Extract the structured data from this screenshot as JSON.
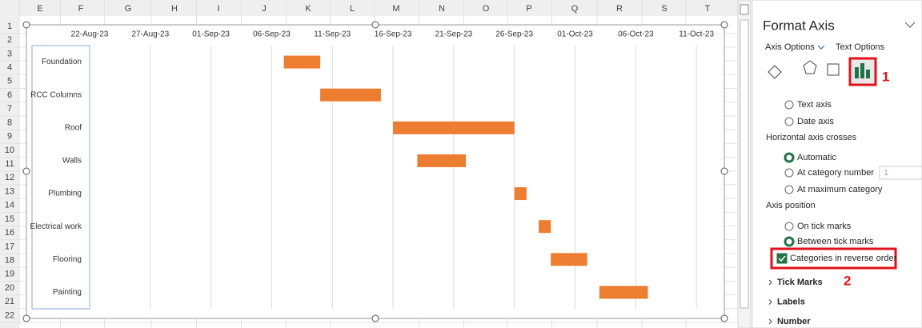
{
  "sheet": {
    "columns": [
      "E",
      "F",
      "G",
      "H",
      "I",
      "J",
      "K",
      "L",
      "M",
      "N",
      "O",
      "P",
      "Q",
      "R",
      "S",
      "T"
    ],
    "rows": [
      "1",
      "2",
      "3",
      "4",
      "5",
      "6",
      "7",
      "8",
      "9",
      "10",
      "11",
      "12",
      "13",
      "14",
      "15",
      "16",
      "17",
      "18",
      "19",
      "20",
      "21",
      "22"
    ]
  },
  "chart_data": {
    "type": "gantt",
    "categories": [
      "Foundation",
      "RCC Columns",
      "Roof",
      "Walls",
      "Plumbing",
      "Electrical work",
      "Flooring",
      "Painting"
    ],
    "start": [
      45176,
      45179,
      45185,
      45187,
      45195,
      45197,
      45198,
      45202
    ],
    "duration": [
      3,
      5,
      10,
      4,
      1,
      1,
      3,
      4
    ],
    "color": "#ed7d31",
    "xlim": [
      45160,
      45212
    ],
    "xticks": [
      {
        "value": 45160,
        "label": "22-Aug-23"
      },
      {
        "value": 45165,
        "label": "27-Aug-23"
      },
      {
        "value": 45170,
        "label": "01-Sep-23"
      },
      {
        "value": 45175,
        "label": "06-Sep-23"
      },
      {
        "value": 45180,
        "label": "11-Sep-23"
      },
      {
        "value": 45185,
        "label": "16-Sep-23"
      },
      {
        "value": 45190,
        "label": "21-Sep-23"
      },
      {
        "value": 45195,
        "label": "26-Sep-23"
      },
      {
        "value": 45200,
        "label": "01-Oct-23"
      },
      {
        "value": 45205,
        "label": "06-Oct-23"
      },
      {
        "value": 45210,
        "label": "11-Oct-23"
      }
    ],
    "grid": true
  },
  "pane": {
    "title": "Format Axis",
    "tabs": [
      "Axis Options",
      "Text Options"
    ],
    "callouts": [
      "1",
      "2"
    ],
    "items": [
      {
        "label": "Text axis",
        "kind": "radio"
      },
      {
        "label": "Date axis",
        "kind": "radio"
      },
      {
        "label": "Horizontal axis crosses",
        "kind": "heading"
      },
      {
        "label": "Automatic",
        "kind": "radio",
        "checked": true
      },
      {
        "label": "At category number",
        "kind": "radio",
        "input": "1"
      },
      {
        "label": "At maximum category",
        "kind": "radio"
      },
      {
        "label": "Axis position",
        "kind": "heading"
      },
      {
        "label": "On tick marks",
        "kind": "radio"
      },
      {
        "label": "Between tick marks",
        "kind": "radio",
        "checked": true
      },
      {
        "label": "Categories in reverse order",
        "kind": "checkbox",
        "checked": true
      }
    ],
    "sections": [
      "Tick Marks",
      "Labels",
      "Number"
    ]
  }
}
